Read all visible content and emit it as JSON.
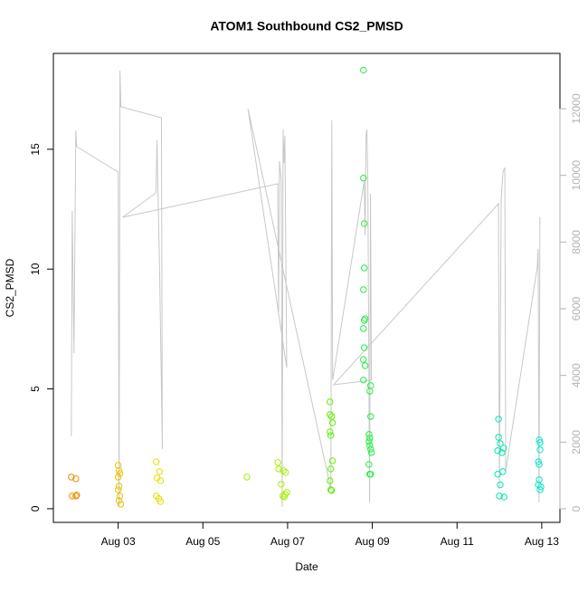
{
  "chart_data": {
    "type": "scatter",
    "title": "ATOM1 Southbound CS2_PMSD",
    "x_label": "Date",
    "y_label": "CS2_PMSD",
    "xlim": [
      1.47,
      13.43
    ],
    "xticks": [
      {
        "value": 3,
        "label": "Aug 03"
      },
      {
        "value": 5,
        "label": "Aug 05"
      },
      {
        "value": 7,
        "label": "Aug 07"
      },
      {
        "value": 9,
        "label": "Aug 09"
      },
      {
        "value": 11,
        "label": "Aug 11"
      },
      {
        "value": 13,
        "label": "Aug 13"
      }
    ],
    "ylim": [
      -0.57,
      19.0
    ],
    "yticks": [
      0,
      5,
      10,
      15
    ],
    "y2lim": [
      -407,
      13657
    ],
    "y2ticks": [
      0,
      2000,
      4000,
      6000,
      8000,
      10000,
      12000
    ],
    "y2_color": "#b3b3b3",
    "series": [
      {
        "type": "line",
        "axis": "y2",
        "color": "#c8c8c8",
        "x": [
          1.894,
          1.915,
          1.957,
          2.0,
          2.021,
          3.0,
          3.021,
          3.043,
          3.064,
          4.021,
          4.043,
          3.979,
          3.915,
          3.894,
          3.106,
          6.766,
          6.787,
          6.809,
          6.851,
          6.872,
          6.894,
          6.915,
          6.936,
          6.979,
          6.064,
          8.021,
          8.043,
          8.064,
          8.809,
          8.83,
          8.851,
          8.872,
          8.894,
          8.936,
          8.957,
          8.979,
          8.085,
          11.979,
          12.0,
          12.043,
          12.085,
          12.128,
          12.149,
          12.894,
          12.915,
          12.936,
          12.957
        ],
        "values": [
          2172,
          8932,
          4670,
          11349,
          10860,
          10100,
          54,
          13141,
          12055,
          11729,
          1792,
          7113,
          11050,
          9475,
          8742,
          9747,
          5892,
          10426,
          9828,
          54,
          11376,
          10371,
          11186,
          4235,
          12000,
          597,
          11647,
          3855,
          9828,
          8199,
          11186,
          11376,
          9828,
          190,
          9448,
          3855,
          3720,
          9150,
          597,
          9285,
          10100,
          10236,
          1140,
          7249,
          7792,
          190,
          8742
        ]
      },
      {
        "type": "scatter",
        "color": "#f08c00",
        "x": [
          1.894,
          2.0,
          1.915,
          2.0,
          2.021
        ],
        "values": [
          1.32,
          1.25,
          0.53,
          0.53,
          0.57
        ]
      },
      {
        "type": "scatter",
        "color": "#e8c400",
        "x": [
          3.0,
          3.02,
          3.04,
          3.0,
          3.02,
          3.0,
          3.04,
          3.02,
          3.06
        ],
        "values": [
          1.81,
          1.59,
          1.47,
          1.32,
          0.94,
          0.79,
          0.53,
          0.34,
          0.19
        ]
      },
      {
        "type": "scatter",
        "color": "#e0e000",
        "x": [
          3.9,
          3.98,
          3.92,
          4.0,
          3.9,
          3.96,
          4.0
        ],
        "values": [
          1.96,
          1.55,
          1.28,
          1.17,
          0.53,
          0.42,
          0.3
        ]
      },
      {
        "type": "scatter",
        "color": "#a8f000",
        "x": [
          6.04,
          6.77,
          6.79,
          6.9,
          6.95,
          6.85,
          6.98,
          6.94,
          6.89,
          6.92
        ],
        "values": [
          1.32,
          1.93,
          1.66,
          1.59,
          1.51,
          1.02,
          0.68,
          0.6,
          0.53,
          0.49
        ]
      },
      {
        "type": "scatter",
        "color": "#60f000",
        "x": [
          8.0,
          8.0,
          8.04,
          8.06,
          8.0,
          8.02,
          8.06,
          8.02,
          8.0,
          8.02,
          8.04
        ],
        "values": [
          4.46,
          3.93,
          3.85,
          3.59,
          3.21,
          3.06,
          2.0,
          1.66,
          1.17,
          0.79,
          0.76
        ]
      },
      {
        "type": "scatter",
        "color": "#20f040",
        "x": [
          8.79,
          8.79,
          8.81,
          8.81,
          8.79,
          8.83,
          8.81,
          8.79,
          8.81,
          8.79,
          8.83,
          8.79,
          8.96,
          8.94,
          8.96,
          8.92,
          8.94,
          8.92,
          8.94,
          8.96,
          8.98,
          8.92,
          8.94,
          8.96
        ],
        "values": [
          18.3,
          13.8,
          11.9,
          10.05,
          9.14,
          7.93,
          7.86,
          7.52,
          6.72,
          6.23,
          5.97,
          5.37,
          5.14,
          4.91,
          3.85,
          3.1,
          2.95,
          2.8,
          2.64,
          2.49,
          2.34,
          1.85,
          1.44,
          1.44
        ]
      },
      {
        "type": "scatter",
        "color": "#00e8b0",
        "x": [
          11.98,
          11.98,
          12.02,
          12.1,
          11.96,
          12.06,
          12.08,
          11.96,
          12.02,
          12.0,
          12.11
        ],
        "values": [
          3.74,
          2.98,
          2.72,
          2.53,
          2.42,
          2.34,
          1.55,
          1.44,
          1.0,
          0.53,
          0.49
        ]
      },
      {
        "type": "scatter",
        "color": "#00e8c8",
        "x": [
          12.94,
          12.96,
          12.96,
          12.92,
          12.94,
          12.94,
          12.92,
          12.98,
          12.96
        ],
        "values": [
          2.87,
          2.76,
          2.46,
          1.96,
          1.85,
          1.21,
          1.0,
          0.91,
          0.79
        ]
      }
    ]
  }
}
